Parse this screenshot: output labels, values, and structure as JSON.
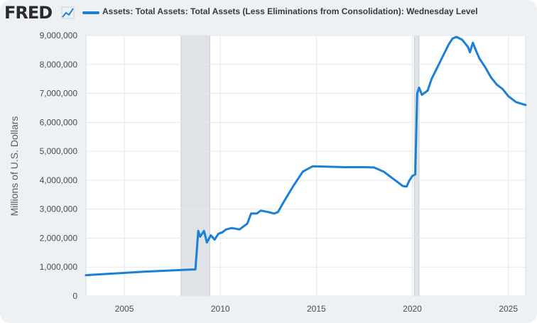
{
  "header": {
    "logo_text": "FRED",
    "logo_icon": "trend-chart-icon"
  },
  "chart_data": {
    "type": "line",
    "title": "",
    "xlabel": "",
    "ylabel": "Millions of U.S. Dollars",
    "legend": {
      "placement": "top",
      "entries": [
        "Assets: Total Assets: Total Assets (Less Eliminations from Consolidation): Wednesday Level"
      ]
    },
    "xlim": [
      2003.0,
      2025.9
    ],
    "ylim": [
      0,
      9000000
    ],
    "x_ticks": [
      2005,
      2010,
      2015,
      2020,
      2025
    ],
    "x_tick_labels": [
      "2005",
      "2010",
      "2015",
      "2020",
      "2025"
    ],
    "y_ticks": [
      0,
      1000000,
      2000000,
      3000000,
      4000000,
      5000000,
      6000000,
      7000000,
      8000000,
      9000000
    ],
    "y_tick_labels": [
      "0",
      "1,000,000",
      "2,000,000",
      "3,000,000",
      "4,000,000",
      "5,000,000",
      "6,000,000",
      "7,000,000",
      "8,000,000",
      "9,000,000"
    ],
    "grid": true,
    "recessions": [
      [
        2007.95,
        2009.45
      ],
      [
        2020.1,
        2020.35
      ]
    ],
    "series": [
      {
        "name": "Assets: Total Assets: Total Assets (Less Eliminations from Consolidation): Wednesday Level",
        "color": "#1a7fd6",
        "x": [
          2003.0,
          2004.0,
          2005.0,
          2006.0,
          2007.0,
          2008.0,
          2008.7,
          2008.85,
          2008.95,
          2009.15,
          2009.3,
          2009.5,
          2009.7,
          2009.9,
          2010.1,
          2010.3,
          2010.6,
          2011.0,
          2011.4,
          2011.6,
          2011.9,
          2012.1,
          2012.5,
          2012.8,
          2013.0,
          2013.3,
          2013.8,
          2014.3,
          2014.8,
          2015.5,
          2016.5,
          2017.5,
          2018.0,
          2018.5,
          2019.0,
          2019.5,
          2019.7,
          2019.85,
          2020.0,
          2020.15,
          2020.25,
          2020.35,
          2020.5,
          2020.8,
          2021.0,
          2021.3,
          2021.6,
          2021.9,
          2022.1,
          2022.3,
          2022.6,
          2022.9,
          2023.0,
          2023.15,
          2023.3,
          2023.5,
          2023.8,
          2024.1,
          2024.4,
          2024.7,
          2025.0,
          2025.4,
          2025.9
        ],
        "y": [
          720000,
          760000,
          800000,
          840000,
          870000,
          900000,
          920000,
          2250000,
          2050000,
          2250000,
          1850000,
          2100000,
          1950000,
          2150000,
          2200000,
          2300000,
          2350000,
          2300000,
          2500000,
          2850000,
          2850000,
          2950000,
          2900000,
          2850000,
          2900000,
          3250000,
          3800000,
          4300000,
          4480000,
          4470000,
          4450000,
          4450000,
          4440000,
          4300000,
          4050000,
          3800000,
          3780000,
          4000000,
          4150000,
          4200000,
          7000000,
          7200000,
          6950000,
          7100000,
          7500000,
          7900000,
          8300000,
          8700000,
          8900000,
          8950000,
          8850000,
          8600000,
          8420000,
          8750000,
          8500000,
          8200000,
          7900000,
          7550000,
          7300000,
          7150000,
          6900000,
          6700000,
          6600000
        ]
      }
    ]
  }
}
